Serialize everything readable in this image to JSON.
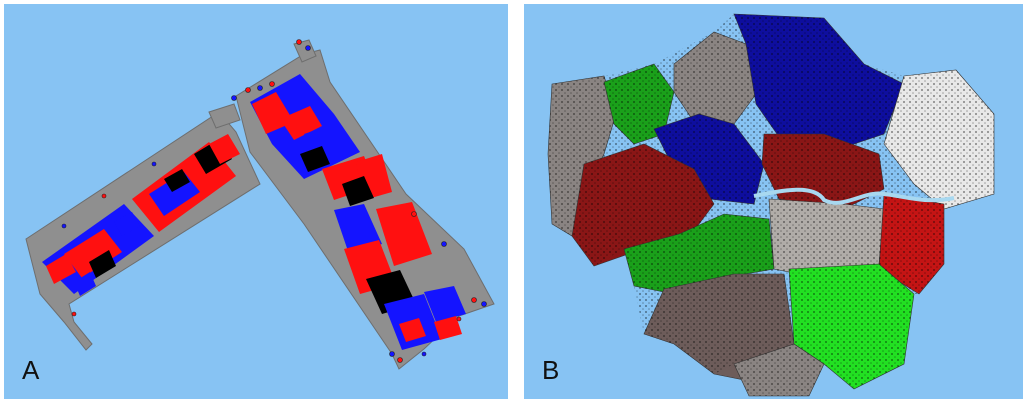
{
  "panels": [
    {
      "label": "A",
      "description_colors": {
        "background": "#87c3f3",
        "street": "#8f8f8f",
        "building_red": "#ff1010",
        "building_blue": "#1414ff",
        "building_black": "#000000"
      }
    },
    {
      "label": "B",
      "description_colors": {
        "background": "#87c3f3",
        "grey": "#8a8482",
        "green": "#1aa01a",
        "blue": "#0e0e9e",
        "dark_red": "#8a1616",
        "red": "#c41414",
        "white": "#e8e8e8",
        "bright_green": "#22e022",
        "river": "#a8d8f0"
      }
    }
  ]
}
